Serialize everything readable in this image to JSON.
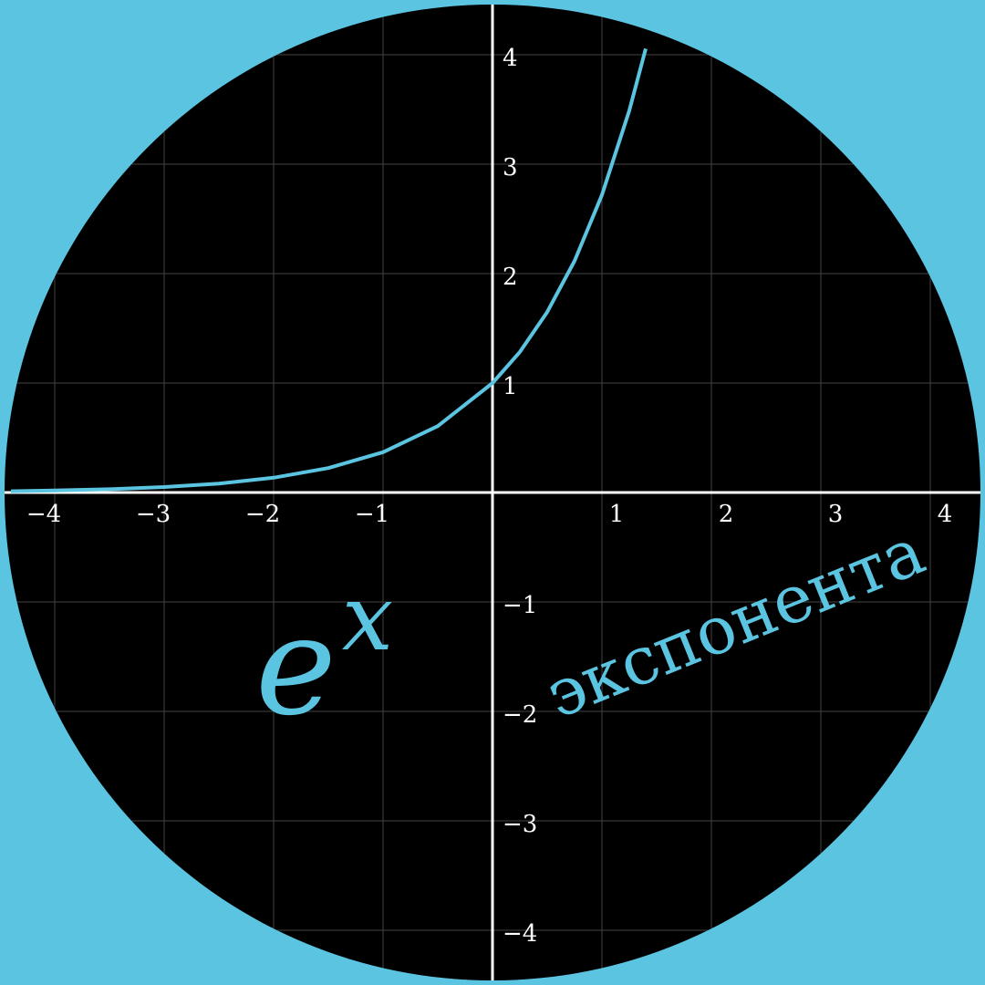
{
  "colors": {
    "background": "#5bc4e0",
    "plot_area": "#000000",
    "axis": "#ffffff",
    "grid": "#444444",
    "curve": "#5bc4e0",
    "text": "#ffffff",
    "accent_text": "#5bc4e0"
  },
  "chart_data": {
    "type": "line",
    "function": "exp(x)",
    "series": [
      {
        "x": [
          -4.4,
          -4,
          -3.5,
          -3,
          -2.5,
          -2,
          -1.5,
          -1,
          -0.5,
          0,
          0.25,
          0.5,
          0.75,
          1,
          1.25,
          1.4
        ],
        "y": [
          0.012,
          0.018,
          0.03,
          0.05,
          0.082,
          0.135,
          0.223,
          0.368,
          0.607,
          1.0,
          1.284,
          1.649,
          2.117,
          2.718,
          3.49,
          4.055
        ]
      }
    ],
    "xlim": [
      -4.45,
      4.45
    ],
    "ylim": [
      -4.45,
      4.45
    ],
    "grid": true,
    "x_ticks": [
      {
        "value": -4,
        "label": "−4"
      },
      {
        "value": -3,
        "label": "−3"
      },
      {
        "value": -2,
        "label": "−2"
      },
      {
        "value": -1,
        "label": "−1"
      },
      {
        "value": 1,
        "label": "1"
      },
      {
        "value": 2,
        "label": "2"
      },
      {
        "value": 3,
        "label": "3"
      },
      {
        "value": 4,
        "label": "4"
      }
    ],
    "y_ticks": [
      {
        "value": 4,
        "label": "4"
      },
      {
        "value": 3,
        "label": "3"
      },
      {
        "value": 2,
        "label": "2"
      },
      {
        "value": 1,
        "label": "1"
      },
      {
        "value": -1,
        "label": "−1"
      },
      {
        "value": -2,
        "label": "−2"
      },
      {
        "value": -3,
        "label": "−3"
      },
      {
        "value": -4,
        "label": "−4"
      }
    ],
    "annotations": {
      "formula_base": "e",
      "formula_exponent": "x",
      "caption": "экспонента"
    }
  }
}
